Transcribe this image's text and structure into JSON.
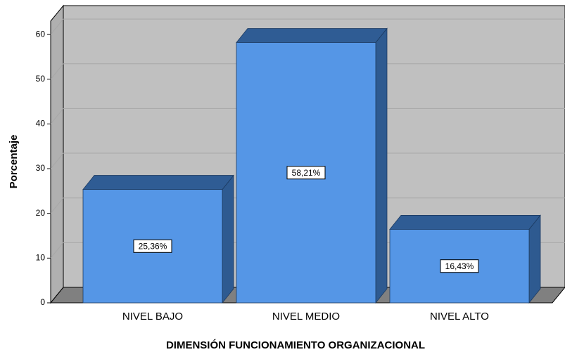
{
  "chart_data": {
    "type": "bar3d",
    "x_label": "DIMENSIÓN FUNCIONAMIENTO ORGANIZACIONAL",
    "y_label": "Porcentaje",
    "categories": [
      "NIVEL BAJO",
      "NIVEL MEDIO",
      "NIVEL ALTO"
    ],
    "values": [
      25.36,
      58.21,
      16.43
    ],
    "value_labels": [
      "25,36%",
      "58,21%",
      "16,43%"
    ],
    "color": "#5596e6",
    "ylim": [
      0,
      63
    ],
    "yticks": [
      0,
      10,
      20,
      30,
      40,
      50,
      60
    ],
    "grid": true
  }
}
